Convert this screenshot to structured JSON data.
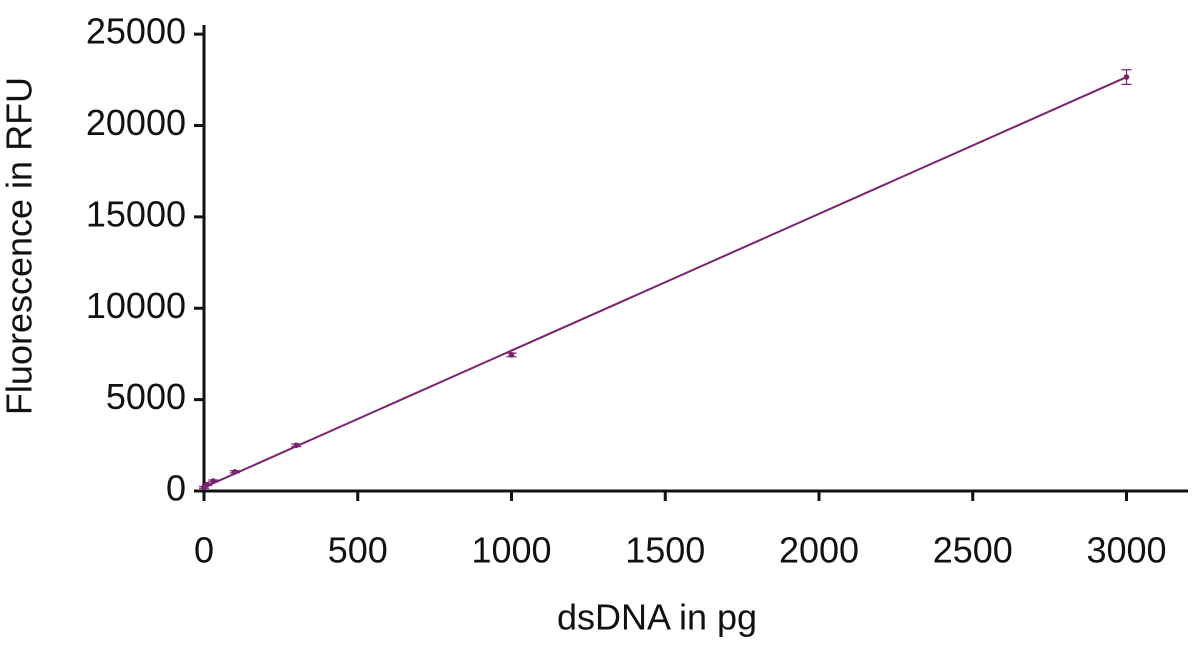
{
  "chart_data": {
    "type": "scatter",
    "x_label": "dsDNA in pg",
    "y_label": "Fluorescence in RFU",
    "x": [
      0,
      10,
      30,
      100,
      300,
      1000,
      3000
    ],
    "values": [
      200,
      350,
      550,
      1050,
      2500,
      7450,
      22650
    ],
    "errors": [
      50,
      50,
      50,
      60,
      70,
      100,
      400
    ],
    "color": "#7b2270",
    "fit": {
      "x": [
        0,
        3000
      ],
      "y": [
        200,
        22650
      ]
    },
    "xlim": [
      0,
      3200
    ],
    "ylim": [
      0,
      25500
    ],
    "xticks": [
      0,
      500,
      1000,
      1500,
      2000,
      2500,
      3000
    ],
    "yticks": [
      0,
      5000,
      10000,
      15000,
      20000,
      25000
    ],
    "grid": false
  }
}
